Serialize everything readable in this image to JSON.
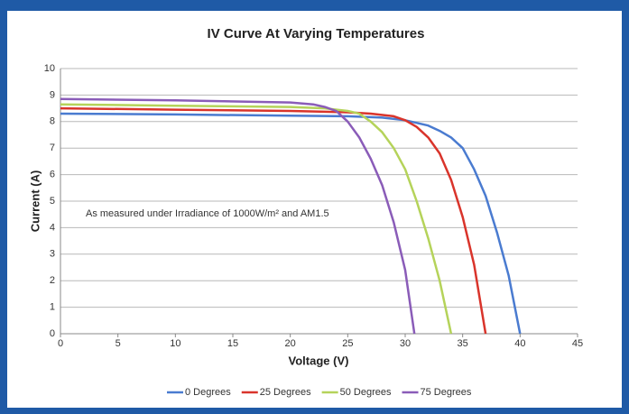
{
  "chart_data": {
    "type": "line",
    "title": "IV Curve At Varying Temperatures",
    "xlabel": "Voltage (V)",
    "ylabel": "Current (A)",
    "annotation": "As measured under Irradiance of 1000W/m² and AM1.5",
    "xlim": [
      0,
      45
    ],
    "xticks": [
      0,
      5,
      10,
      15,
      20,
      25,
      30,
      35,
      40,
      45
    ],
    "ylim": [
      0,
      10
    ],
    "yticks": [
      0,
      1,
      2,
      3,
      4,
      5,
      6,
      7,
      8,
      9,
      10
    ],
    "grid": true,
    "legend": "bottom",
    "series": [
      {
        "name": "0 Degrees",
        "color": "#4a7bd0",
        "x": [
          0,
          10,
          20,
          25,
          28,
          30,
          32,
          33,
          34,
          35,
          36,
          37,
          38,
          39,
          40
        ],
        "values": [
          8.3,
          8.27,
          8.22,
          8.2,
          8.15,
          8.05,
          7.85,
          7.65,
          7.4,
          7.0,
          6.2,
          5.2,
          3.8,
          2.2,
          0
        ]
      },
      {
        "name": "25 Degrees",
        "color": "#d9342b",
        "x": [
          0,
          10,
          20,
          25,
          27,
          29,
          30,
          31,
          32,
          33,
          34,
          35,
          36,
          37
        ],
        "values": [
          8.5,
          8.45,
          8.4,
          8.35,
          8.3,
          8.2,
          8.05,
          7.8,
          7.4,
          6.8,
          5.8,
          4.4,
          2.6,
          0
        ]
      },
      {
        "name": "50 Degrees",
        "color": "#b5d35a",
        "x": [
          0,
          10,
          20,
          23,
          25,
          26,
          27,
          28,
          29,
          30,
          31,
          32,
          33,
          34
        ],
        "values": [
          8.65,
          8.6,
          8.55,
          8.5,
          8.4,
          8.3,
          8.0,
          7.6,
          7.0,
          6.2,
          5.0,
          3.6,
          2.0,
          0
        ]
      },
      {
        "name": "75 Degrees",
        "color": "#8a5cb8",
        "x": [
          0,
          10,
          20,
          22,
          23,
          24,
          25,
          26,
          27,
          28,
          29,
          30,
          30.8
        ],
        "values": [
          8.85,
          8.8,
          8.72,
          8.65,
          8.55,
          8.4,
          8.0,
          7.4,
          6.6,
          5.6,
          4.2,
          2.4,
          0
        ]
      }
    ]
  }
}
